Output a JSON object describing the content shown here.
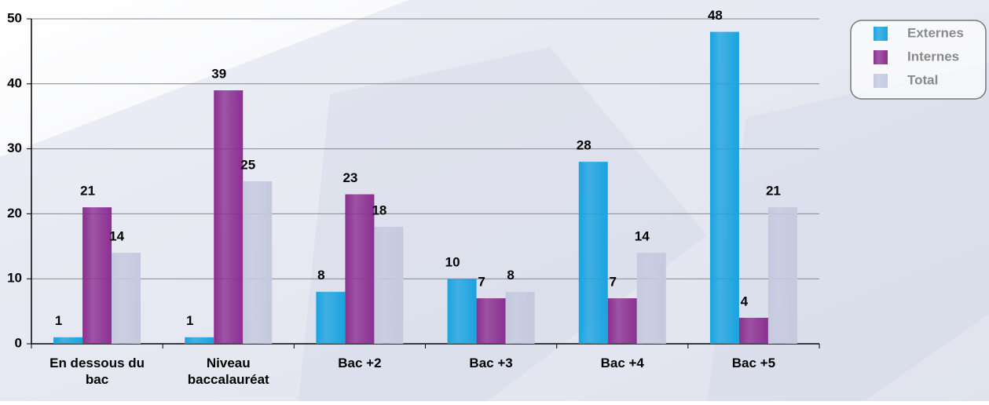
{
  "chart_data": {
    "type": "bar",
    "categories": [
      "En dessous du bac",
      "Niveau baccalauréat",
      "Bac +2",
      "Bac +3",
      "Bac +4",
      "Bac +5"
    ],
    "series": [
      {
        "name": "Externes",
        "color": "#1aa3e0",
        "values": [
          1,
          1,
          8,
          10,
          28,
          48
        ]
      },
      {
        "name": "Internes",
        "color": "#8b2f90",
        "values": [
          21,
          39,
          23,
          7,
          7,
          4
        ]
      },
      {
        "name": "Total",
        "color": "#c5c9de",
        "values": [
          14,
          25,
          18,
          8,
          14,
          21
        ]
      }
    ],
    "ylim": [
      0,
      50
    ],
    "yticks": [
      0,
      10,
      20,
      30,
      40,
      50
    ],
    "grid": true,
    "legend": "top-right"
  }
}
